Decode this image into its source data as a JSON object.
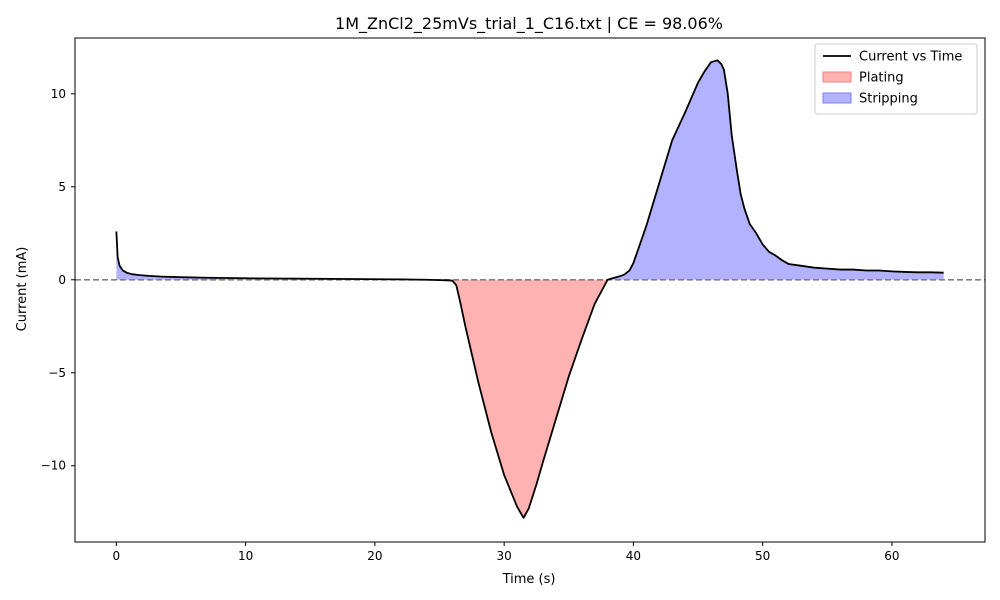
{
  "chart_data": {
    "type": "area",
    "title": "1M_ZnCl2_25mVs_trial_1_C16.txt | CE = 98.06%",
    "xlabel": "Time (s)",
    "ylabel": "Current (mA)",
    "xlim": [
      -3.2,
      67.2
    ],
    "ylim": [
      -14.1,
      13.0
    ],
    "x_ticks": [
      0,
      10,
      20,
      30,
      40,
      50,
      60
    ],
    "x_tick_labels": [
      "0",
      "10",
      "20",
      "30",
      "40",
      "50",
      "60"
    ],
    "y_ticks": [
      -10,
      -5,
      0,
      5,
      10
    ],
    "y_tick_labels": [
      "−10",
      "−5",
      "0",
      "5",
      "10"
    ],
    "grid": false,
    "reference_line": {
      "y": 0,
      "style": "dashed",
      "color": "#808080"
    },
    "legend": {
      "placement": "top-right",
      "entries": [
        {
          "label": "Current vs Time",
          "kind": "line",
          "color": "#000000"
        },
        {
          "label": "Plating",
          "kind": "patch",
          "color": "#ff7f7f"
        },
        {
          "label": "Stripping",
          "kind": "patch",
          "color": "#7f7fff"
        }
      ]
    },
    "series": [
      {
        "name": "Current vs Time",
        "color": "#000000",
        "x": [
          0,
          0.1,
          0.25,
          0.5,
          0.8,
          1.2,
          1.8,
          2.5,
          3.5,
          5,
          7,
          10,
          14,
          18,
          22,
          24,
          25,
          25.6,
          26,
          26.3,
          26.6,
          27,
          28,
          29,
          30,
          31,
          31.5,
          31.9,
          32.5,
          33,
          34,
          35,
          36,
          37,
          38,
          38.5,
          39,
          39.3,
          39.7,
          40,
          40.3,
          41,
          42,
          43,
          44,
          44.5,
          45,
          45.5,
          46,
          46.5,
          46.8,
          47,
          47.3,
          47.6,
          48,
          48.3,
          48.6,
          49,
          49.5,
          50,
          50.5,
          51,
          51.5,
          52,
          53,
          54,
          55,
          56,
          57,
          58,
          59,
          60,
          61,
          62,
          63,
          64
        ],
        "y": [
          2.6,
          1.2,
          0.75,
          0.5,
          0.38,
          0.3,
          0.25,
          0.21,
          0.17,
          0.14,
          0.11,
          0.08,
          0.06,
          0.04,
          0.02,
          0.0,
          -0.02,
          -0.03,
          -0.05,
          -0.3,
          -1.2,
          -2.5,
          -5.5,
          -8.2,
          -10.5,
          -12.2,
          -12.8,
          -12.3,
          -11.0,
          -9.8,
          -7.5,
          -5.2,
          -3.2,
          -1.3,
          0.0,
          0.1,
          0.2,
          0.28,
          0.5,
          0.9,
          1.5,
          2.9,
          5.2,
          7.5,
          9.0,
          9.8,
          10.6,
          11.2,
          11.7,
          11.8,
          11.6,
          11.3,
          10.0,
          7.8,
          5.9,
          4.6,
          3.8,
          3.0,
          2.5,
          1.9,
          1.5,
          1.3,
          1.05,
          0.85,
          0.75,
          0.65,
          0.6,
          0.55,
          0.55,
          0.5,
          0.5,
          0.45,
          0.42,
          0.4,
          0.4,
          0.38
        ]
      }
    ],
    "fills": [
      {
        "name": "Plating",
        "region": "y < 0",
        "color": "#ff7f7f",
        "alpha": 0.6
      },
      {
        "name": "Stripping",
        "region": "y > 0",
        "color": "#7f7fff",
        "alpha": 0.6
      }
    ]
  }
}
